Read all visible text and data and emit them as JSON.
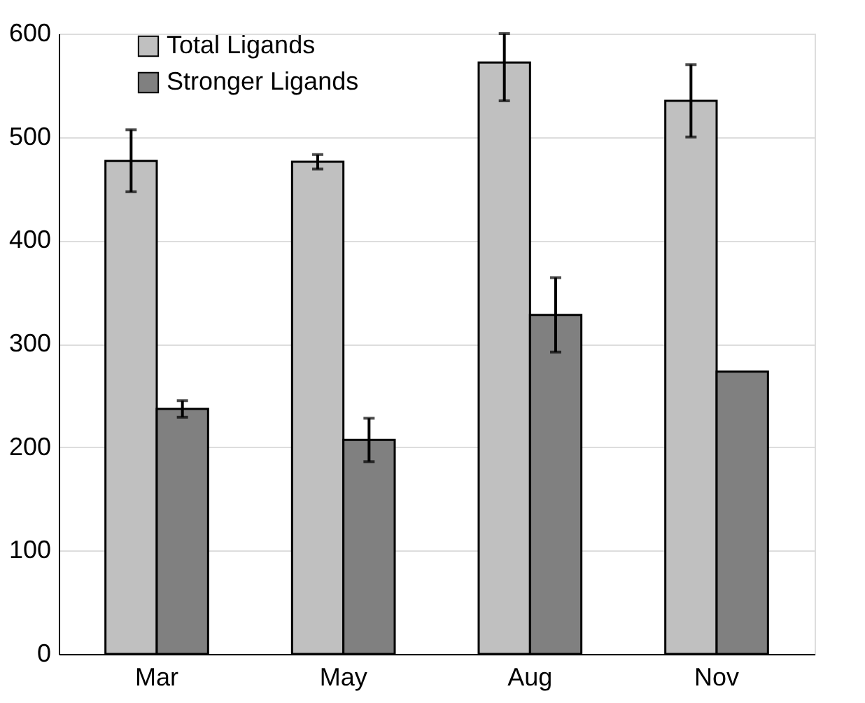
{
  "chart_data": {
    "type": "bar",
    "categories": [
      "Mar",
      "May",
      "Aug",
      "Nov"
    ],
    "series": [
      {
        "name": "Total Ligands",
        "color": "#c0c0c0",
        "values": [
          477,
          476,
          572,
          535
        ],
        "errors": [
          30,
          7,
          [
            535,
            600
          ],
          35
        ]
      },
      {
        "name": "Stronger Ligands",
        "color": "#808080",
        "values": [
          237,
          207,
          328,
          273
        ],
        "errors": [
          8,
          21,
          36,
          null
        ]
      }
    ],
    "ylim": [
      0,
      600
    ],
    "yticks": [
      0,
      100,
      200,
      300,
      400,
      500,
      600
    ],
    "grid": "y",
    "legend": "top left"
  }
}
